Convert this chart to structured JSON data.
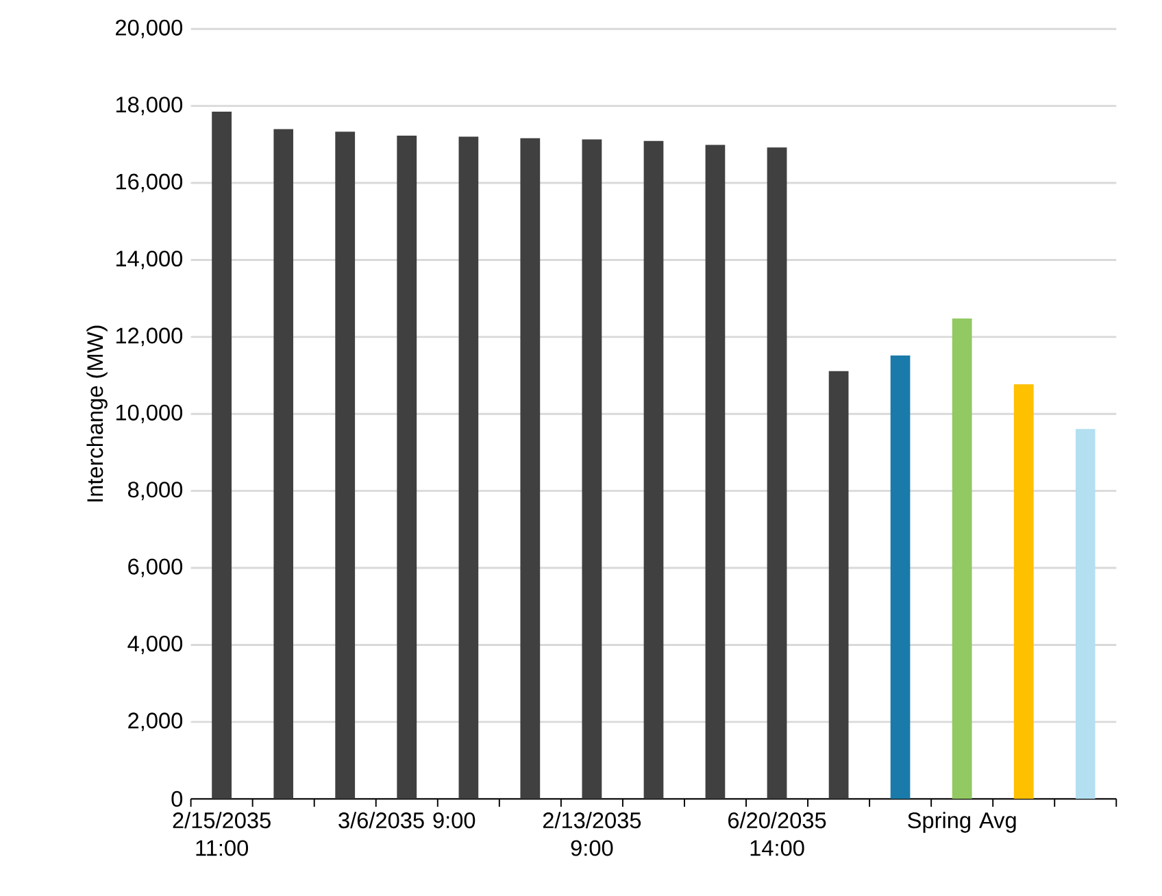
{
  "chart_data": {
    "type": "bar",
    "ylabel": "Interchange (MW)",
    "categories": [
      "2/15/2035 11:00",
      null,
      null,
      "3/6/2035 9:00",
      null,
      null,
      "2/13/2035 9:00",
      null,
      null,
      "6/20/2035 14:00",
      null,
      null,
      "Spring Avg",
      null,
      null
    ],
    "values": [
      17850,
      17400,
      17330,
      17230,
      17200,
      17160,
      17130,
      17090,
      16990,
      16920,
      11110,
      11520,
      12480,
      10770,
      9610
    ],
    "colors": [
      "#404040",
      "#404040",
      "#404040",
      "#404040",
      "#404040",
      "#404040",
      "#404040",
      "#404040",
      "#404040",
      "#404040",
      "#404040",
      "#1a7aaa",
      "#92c962",
      "#ffc000",
      "#b3dff1"
    ],
    "ylim": [
      0,
      20000
    ],
    "yticks": [
      0,
      {
        "value": 2000,
        "label": "2,000"
      },
      {
        "value": 4000,
        "label": "4,000"
      },
      {
        "value": 6000,
        "label": "6,000"
      },
      {
        "value": 8000,
        "label": "8,000"
      },
      {
        "value": 10000,
        "label": "10,000"
      },
      {
        "value": 12000,
        "label": "12,000"
      },
      {
        "value": 14000,
        "label": "14,000"
      },
      {
        "value": 16000,
        "label": "16,000"
      },
      {
        "value": 18000,
        "label": "18,000"
      },
      {
        "value": 20000,
        "label": "20,000"
      }
    ],
    "grid": "y"
  }
}
